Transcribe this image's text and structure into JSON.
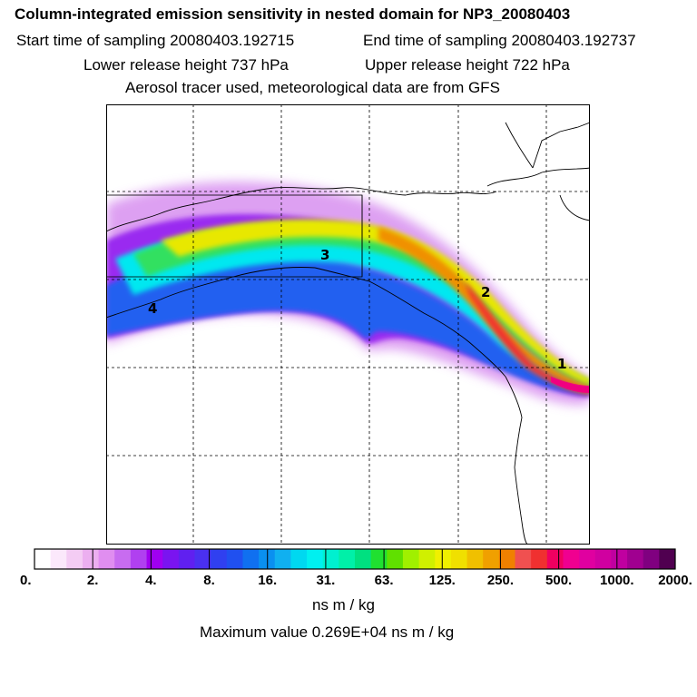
{
  "title": "Column-integrated emission sensitivity in nested domain for NP3_20080403",
  "start_time": "Start time of sampling 20080403.192715",
  "end_time": "End time of sampling 20080403.192737",
  "lower_height": "Lower release height  737 hPa",
  "upper_height": "Upper release height  722 hPa",
  "aerosol_note": "Aerosol tracer used, meteorological data are from GFS",
  "labels": [
    "1",
    "2",
    "3",
    "4"
  ],
  "colorbar": {
    "ticks": [
      "0.",
      "2.",
      "4.",
      "8.",
      "16.",
      "31.",
      "63.",
      "125.",
      "250.",
      "500.",
      "1000.",
      "2000."
    ],
    "units": "ns m / kg",
    "colors": [
      "#ffffff",
      "#fbe8fb",
      "#f4ccf4",
      "#ecaff0",
      "#e08ef0",
      "#c86cf0",
      "#b040f0",
      "#a000f0",
      "#7a14f0",
      "#6020f0",
      "#4a30f0",
      "#3040f0",
      "#2050f0",
      "#1070f0",
      "#0a90f0",
      "#10b0f0",
      "#00d8f0",
      "#00f0f0",
      "#00f0d0",
      "#00f0a8",
      "#00e080",
      "#20e030",
      "#60e000",
      "#a0f000",
      "#d0f000",
      "#f0f000",
      "#f0e000",
      "#f0c000",
      "#f0a000",
      "#f08000",
      "#f05050",
      "#f03030",
      "#f00060",
      "#f00090",
      "#e000a0",
      "#d000a0",
      "#c000a0",
      "#a00090",
      "#800080",
      "#500050"
    ]
  },
  "max_value": "Maximum value  0.269E+04 ns m / kg"
}
